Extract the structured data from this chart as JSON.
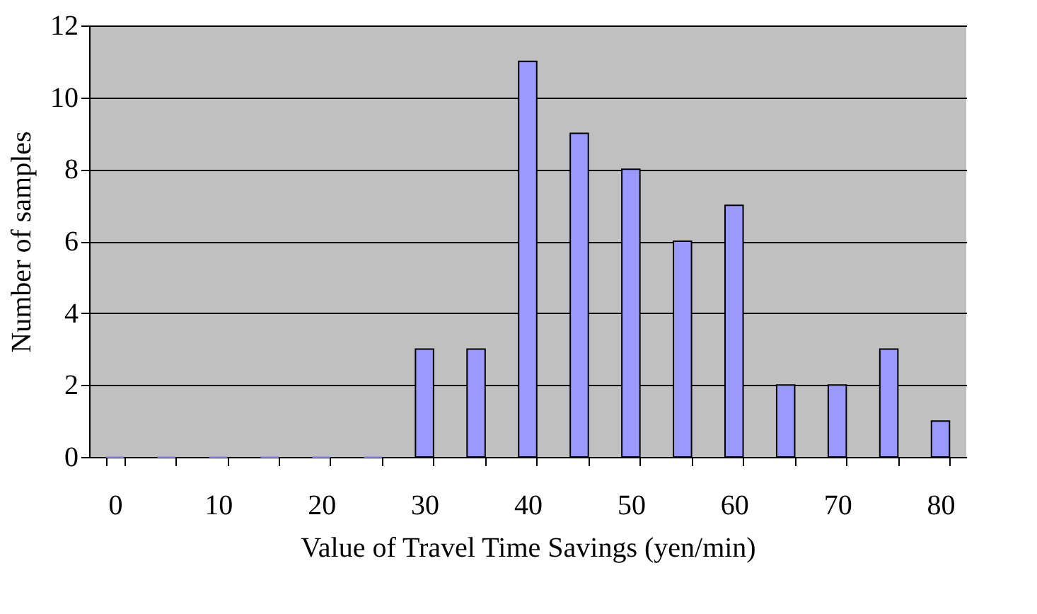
{
  "chart_data": {
    "type": "bar",
    "xlabel": "Value of Travel Time Savings (yen/min)",
    "ylabel": "Number of samples",
    "categories": [
      "0",
      null,
      "10",
      null,
      "20",
      null,
      "30",
      null,
      "40",
      null,
      "50",
      null,
      "60",
      null,
      "70",
      null,
      "80"
    ],
    "values": [
      0,
      0,
      0,
      0,
      0,
      0,
      3,
      3,
      11,
      9,
      8,
      6,
      7,
      2,
      2,
      3,
      1
    ],
    "color": "#9999ff",
    "ylim": [
      0,
      12
    ],
    "yticks": [
      0,
      2,
      4,
      6,
      8,
      10,
      12
    ],
    "grid": "y"
  }
}
